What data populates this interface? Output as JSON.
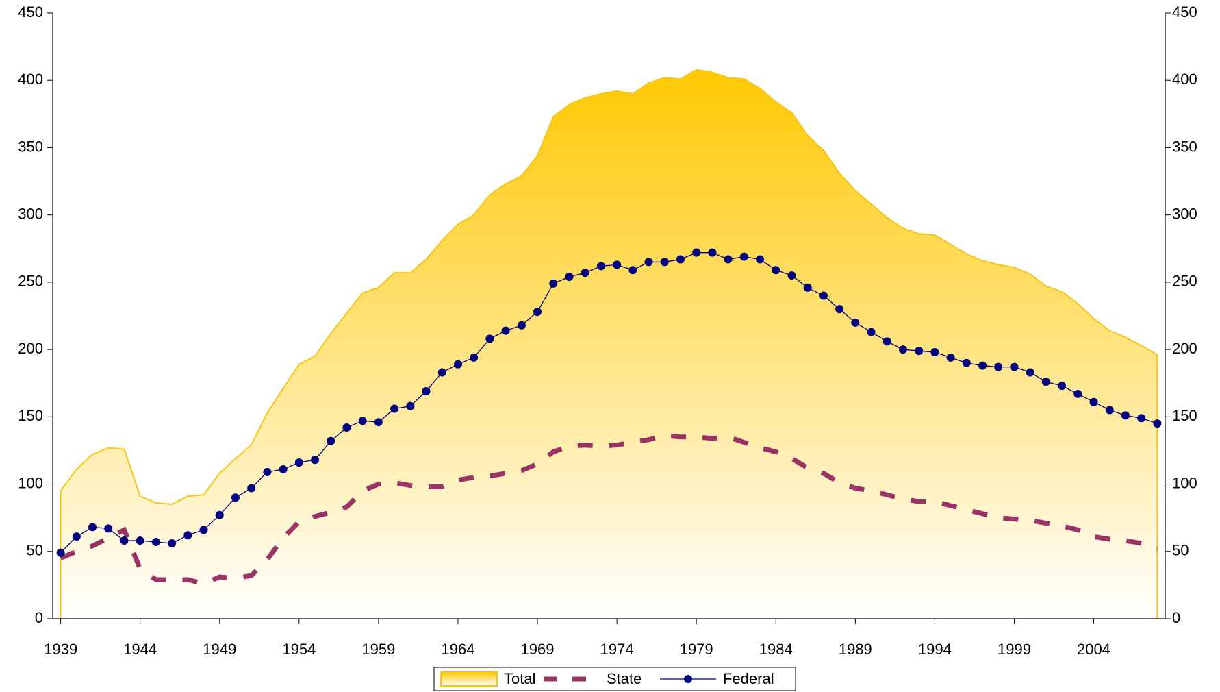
{
  "chart_data": {
    "type": "line",
    "x": [
      1939,
      1940,
      1941,
      1942,
      1943,
      1944,
      1945,
      1946,
      1947,
      1948,
      1949,
      1950,
      1951,
      1952,
      1953,
      1954,
      1955,
      1956,
      1957,
      1958,
      1959,
      1960,
      1961,
      1962,
      1963,
      1964,
      1965,
      1966,
      1967,
      1968,
      1969,
      1970,
      1971,
      1972,
      1973,
      1974,
      1975,
      1976,
      1977,
      1978,
      1979,
      1980,
      1981,
      1982,
      1983,
      1984,
      1985,
      1986,
      1987,
      1988,
      1989,
      1990,
      1991,
      1992,
      1993,
      1994,
      1995,
      1996,
      1997,
      1998,
      1999,
      2000,
      2001,
      2002,
      2003,
      2004,
      2005,
      2006,
      2007,
      2008
    ],
    "series": [
      {
        "name": "Total",
        "color": "#f5c518",
        "fill": "#ffc800",
        "style": "area",
        "values": [
          95,
          111,
          122,
          127,
          126,
          91,
          86,
          85,
          91,
          92,
          108,
          119,
          129,
          153,
          171,
          189,
          195,
          212,
          227,
          242,
          246,
          257,
          257,
          267,
          281,
          293,
          300,
          315,
          323,
          329,
          344,
          373,
          382,
          387,
          390,
          392,
          390,
          398,
          402,
          401,
          408,
          406,
          402,
          401,
          394,
          384,
          376,
          359,
          348,
          331,
          318,
          308,
          298,
          290,
          286,
          285,
          278,
          271,
          266,
          263,
          261,
          256,
          247,
          243,
          234,
          223,
          214,
          209,
          203,
          196
        ]
      },
      {
        "name": "State",
        "color": "#993366",
        "style": "dashed",
        "values": [
          45,
          50,
          54,
          60,
          66,
          37,
          29,
          29,
          29,
          26,
          31,
          30,
          32,
          44,
          60,
          72,
          76,
          79,
          83,
          95,
          100,
          101,
          99,
          98,
          98,
          103,
          105,
          106,
          108,
          110,
          115,
          124,
          128,
          129,
          128,
          129,
          131,
          133,
          136,
          135,
          135,
          134,
          135,
          131,
          127,
          124,
          119,
          112,
          108,
          101,
          97,
          95,
          92,
          89,
          87,
          87,
          84,
          81,
          78,
          75,
          74,
          73,
          71,
          69,
          66,
          61,
          59,
          58,
          56,
          52
        ]
      },
      {
        "name": "Federal",
        "color": "#000080",
        "style": "markers",
        "values": [
          49,
          61,
          68,
          67,
          58,
          58,
          57,
          56,
          62,
          66,
          77,
          90,
          97,
          109,
          111,
          116,
          118,
          132,
          142,
          147,
          146,
          156,
          158,
          169,
          183,
          189,
          194,
          208,
          214,
          218,
          228,
          249,
          254,
          257,
          262,
          263,
          259,
          265,
          265,
          267,
          272,
          272,
          267,
          269,
          267,
          259,
          255,
          246,
          240,
          230,
          220,
          213,
          206,
          200,
          199,
          198,
          194,
          190,
          188,
          187,
          187,
          183,
          176,
          173,
          167,
          161,
          155,
          151,
          149,
          145
        ]
      }
    ],
    "xlim": [
      1938.5,
      2008.5
    ],
    "xticks": [
      1939,
      1944,
      1949,
      1954,
      1959,
      1964,
      1969,
      1974,
      1979,
      1984,
      1989,
      1994,
      1999,
      2004
    ],
    "ylim": [
      0,
      450
    ],
    "yticks": [
      0,
      50,
      100,
      150,
      200,
      250,
      300,
      350,
      400,
      450
    ],
    "y2lim": [
      0,
      450
    ],
    "y2ticks": [
      0,
      50,
      100,
      150,
      200,
      250,
      300,
      350,
      400,
      450
    ],
    "legend": "bottom"
  }
}
